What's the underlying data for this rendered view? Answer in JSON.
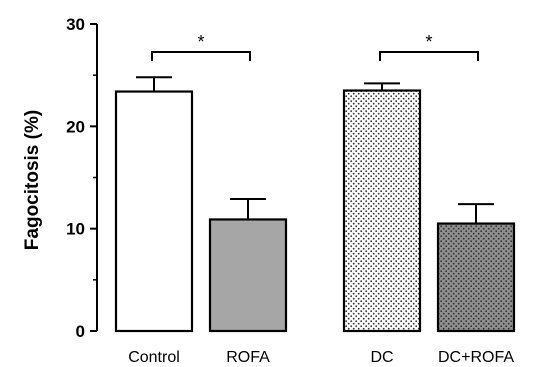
{
  "chart_data": {
    "type": "bar",
    "ylabel": "Fagocitosis (%)",
    "xlabel": "",
    "ylim": [
      0,
      30
    ],
    "yticks": [
      "0",
      "10",
      "20",
      "30"
    ],
    "categories": [
      "Control",
      "ROFA",
      "DC",
      "DC+ROFA"
    ],
    "values": [
      23.4,
      10.9,
      23.5,
      10.5
    ],
    "errors": [
      1.4,
      2.0,
      0.7,
      1.9
    ],
    "fills": [
      "white",
      "gray",
      "dotted",
      "dark-dotted"
    ],
    "significance": [
      {
        "from": 0,
        "to": 1,
        "label": "*"
      },
      {
        "from": 2,
        "to": 3,
        "label": "*"
      }
    ],
    "grid": false,
    "legend": "none"
  },
  "colors": {
    "axis": "#000000",
    "gray_bar": "#a6a6a6",
    "dotted_bar_bg": "#ffffff",
    "dark_dotted_bar_bg": "#8f8f8f"
  }
}
